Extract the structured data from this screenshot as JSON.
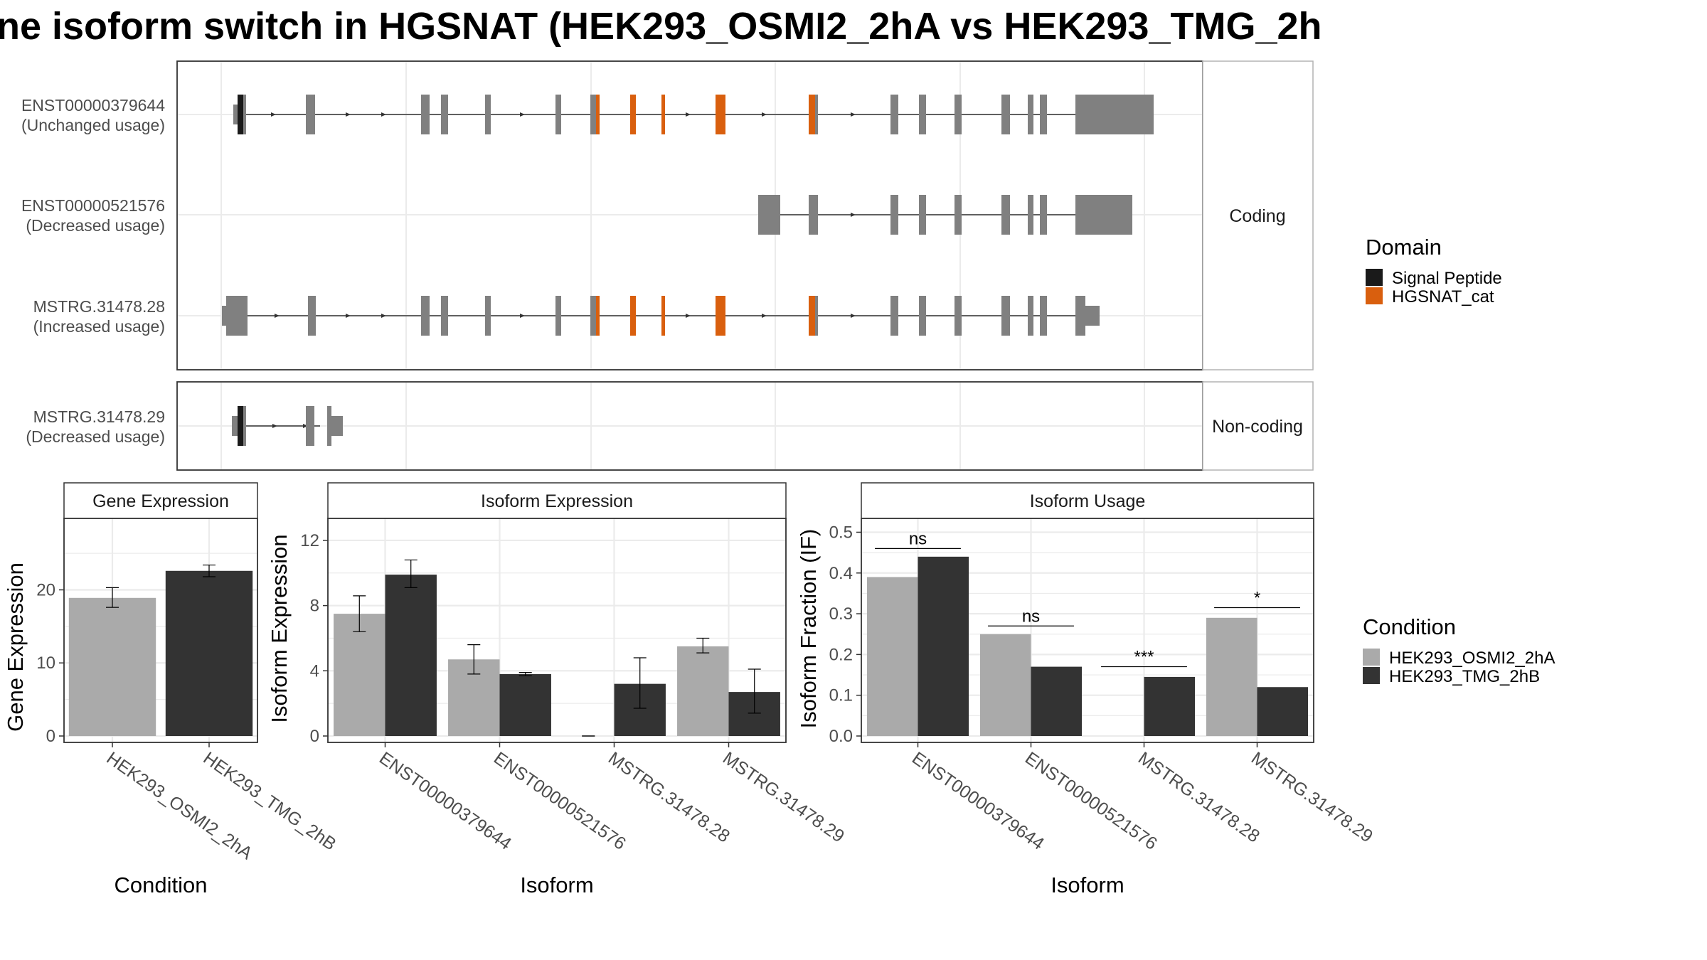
{
  "title": "ne isoform switch in HGSNAT (HEK293_OSMI2_2hA vs HEK293_TMG_2h",
  "colors": {
    "exon": "#808080",
    "signal_peptide": "#1a1a1a",
    "hgsnat_cat": "#d95f0e",
    "cond_a": "#aaaaaa",
    "cond_b": "#333333",
    "grid": "#ebebeb",
    "panel_border": "#333333",
    "strip_fill": "#ffffff"
  },
  "structure": {
    "strip_coding": "Coding",
    "strip_noncoding": "Non-coding",
    "isoforms": [
      {
        "id": "ENST00000379644",
        "usage": "(Unchanged usage)",
        "group": "coding"
      },
      {
        "id": "ENST00000521576",
        "usage": "(Decreased usage)",
        "group": "coding"
      },
      {
        "id": "MSTRG.31478.28",
        "usage": "(Increased usage)",
        "group": "coding"
      },
      {
        "id": "MSTRG.31478.29",
        "usage": "(Decreased usage)",
        "group": "noncoding"
      }
    ]
  },
  "legend_domain": {
    "title": "Domain",
    "items": [
      {
        "label": "Signal Peptide",
        "color": "#1a1a1a"
      },
      {
        "label": "HGSNAT_cat",
        "color": "#d95f0e"
      }
    ]
  },
  "legend_condition": {
    "title": "Condition",
    "items": [
      {
        "label": "HEK293_OSMI2_2hA",
        "color": "#aaaaaa"
      },
      {
        "label": "HEK293_TMG_2hB",
        "color": "#333333"
      }
    ]
  },
  "chart_data": [
    {
      "type": "bar",
      "title": "Gene Expression",
      "xlabel": "Condition",
      "ylabel": "Gene Expression",
      "categories": [
        "HEK293_OSMI2_2hA",
        "HEK293_TMG_2hB"
      ],
      "values": [
        18.9,
        22.6
      ],
      "error_low": [
        17.6,
        21.8
      ],
      "error_high": [
        20.3,
        23.4
      ],
      "ylim": [
        0,
        29
      ],
      "yticks": [
        0,
        10,
        20
      ],
      "grid": true
    },
    {
      "type": "bar",
      "title": "Isoform Expression",
      "xlabel": "Isoform",
      "ylabel": "Isoform Expression",
      "categories": [
        "ENST00000379644",
        "ENST00000521576",
        "MSTRG.31478.28",
        "MSTRG.31478.29"
      ],
      "series": [
        {
          "name": "HEK293_OSMI2_2hA",
          "values": [
            7.5,
            4.7,
            0.0,
            5.5
          ],
          "error_low": [
            6.4,
            3.8,
            0.0,
            5.1
          ],
          "error_high": [
            8.6,
            5.6,
            0.0,
            6.0
          ]
        },
        {
          "name": "HEK293_TMG_2hB",
          "values": [
            9.9,
            3.8,
            3.2,
            2.7
          ],
          "error_low": [
            9.1,
            3.7,
            1.7,
            1.4
          ],
          "error_high": [
            10.8,
            3.9,
            4.8,
            4.1
          ]
        }
      ],
      "ylim": [
        0,
        13
      ],
      "yticks": [
        0,
        4,
        8,
        12
      ],
      "grid": true
    },
    {
      "type": "bar",
      "title": "Isoform Usage",
      "xlabel": "Isoform",
      "ylabel": "Isoform Fraction (IF)",
      "categories": [
        "ENST00000379644",
        "ENST00000521576",
        "MSTRG.31478.28",
        "MSTRG.31478.29"
      ],
      "series": [
        {
          "name": "HEK293_OSMI2_2hA",
          "values": [
            0.39,
            0.25,
            0.0,
            0.29
          ]
        },
        {
          "name": "HEK293_TMG_2hB",
          "values": [
            0.44,
            0.17,
            0.145,
            0.12
          ]
        }
      ],
      "significance": [
        "ns",
        "ns",
        "***",
        "*"
      ],
      "significance_y": [
        0.46,
        0.27,
        0.17,
        0.315
      ],
      "ylim": [
        0,
        0.52
      ],
      "yticks": [
        0.0,
        0.1,
        0.2,
        0.3,
        0.4,
        0.5
      ],
      "grid": true
    }
  ]
}
